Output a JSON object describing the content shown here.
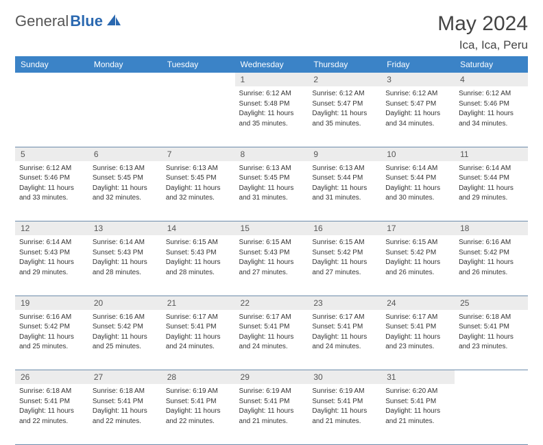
{
  "brand": {
    "part1": "General",
    "part2": "Blue"
  },
  "title": "May 2024",
  "location": "Ica, Ica, Peru",
  "colors": {
    "header_bg": "#3b83c7",
    "daynum_bg": "#ececec",
    "row_border": "#6a8aaa",
    "brand_blue": "#2a68b0"
  },
  "day_headers": [
    "Sunday",
    "Monday",
    "Tuesday",
    "Wednesday",
    "Thursday",
    "Friday",
    "Saturday"
  ],
  "weeks": [
    [
      null,
      null,
      null,
      {
        "d": "1",
        "sr": "6:12 AM",
        "ss": "5:48 PM",
        "dl1": "Daylight: 11 hours",
        "dl2": "and 35 minutes."
      },
      {
        "d": "2",
        "sr": "6:12 AM",
        "ss": "5:47 PM",
        "dl1": "Daylight: 11 hours",
        "dl2": "and 35 minutes."
      },
      {
        "d": "3",
        "sr": "6:12 AM",
        "ss": "5:47 PM",
        "dl1": "Daylight: 11 hours",
        "dl2": "and 34 minutes."
      },
      {
        "d": "4",
        "sr": "6:12 AM",
        "ss": "5:46 PM",
        "dl1": "Daylight: 11 hours",
        "dl2": "and 34 minutes."
      }
    ],
    [
      {
        "d": "5",
        "sr": "6:12 AM",
        "ss": "5:46 PM",
        "dl1": "Daylight: 11 hours",
        "dl2": "and 33 minutes."
      },
      {
        "d": "6",
        "sr": "6:13 AM",
        "ss": "5:45 PM",
        "dl1": "Daylight: 11 hours",
        "dl2": "and 32 minutes."
      },
      {
        "d": "7",
        "sr": "6:13 AM",
        "ss": "5:45 PM",
        "dl1": "Daylight: 11 hours",
        "dl2": "and 32 minutes."
      },
      {
        "d": "8",
        "sr": "6:13 AM",
        "ss": "5:45 PM",
        "dl1": "Daylight: 11 hours",
        "dl2": "and 31 minutes."
      },
      {
        "d": "9",
        "sr": "6:13 AM",
        "ss": "5:44 PM",
        "dl1": "Daylight: 11 hours",
        "dl2": "and 31 minutes."
      },
      {
        "d": "10",
        "sr": "6:14 AM",
        "ss": "5:44 PM",
        "dl1": "Daylight: 11 hours",
        "dl2": "and 30 minutes."
      },
      {
        "d": "11",
        "sr": "6:14 AM",
        "ss": "5:44 PM",
        "dl1": "Daylight: 11 hours",
        "dl2": "and 29 minutes."
      }
    ],
    [
      {
        "d": "12",
        "sr": "6:14 AM",
        "ss": "5:43 PM",
        "dl1": "Daylight: 11 hours",
        "dl2": "and 29 minutes."
      },
      {
        "d": "13",
        "sr": "6:14 AM",
        "ss": "5:43 PM",
        "dl1": "Daylight: 11 hours",
        "dl2": "and 28 minutes."
      },
      {
        "d": "14",
        "sr": "6:15 AM",
        "ss": "5:43 PM",
        "dl1": "Daylight: 11 hours",
        "dl2": "and 28 minutes."
      },
      {
        "d": "15",
        "sr": "6:15 AM",
        "ss": "5:43 PM",
        "dl1": "Daylight: 11 hours",
        "dl2": "and 27 minutes."
      },
      {
        "d": "16",
        "sr": "6:15 AM",
        "ss": "5:42 PM",
        "dl1": "Daylight: 11 hours",
        "dl2": "and 27 minutes."
      },
      {
        "d": "17",
        "sr": "6:15 AM",
        "ss": "5:42 PM",
        "dl1": "Daylight: 11 hours",
        "dl2": "and 26 minutes."
      },
      {
        "d": "18",
        "sr": "6:16 AM",
        "ss": "5:42 PM",
        "dl1": "Daylight: 11 hours",
        "dl2": "and 26 minutes."
      }
    ],
    [
      {
        "d": "19",
        "sr": "6:16 AM",
        "ss": "5:42 PM",
        "dl1": "Daylight: 11 hours",
        "dl2": "and 25 minutes."
      },
      {
        "d": "20",
        "sr": "6:16 AM",
        "ss": "5:42 PM",
        "dl1": "Daylight: 11 hours",
        "dl2": "and 25 minutes."
      },
      {
        "d": "21",
        "sr": "6:17 AM",
        "ss": "5:41 PM",
        "dl1": "Daylight: 11 hours",
        "dl2": "and 24 minutes."
      },
      {
        "d": "22",
        "sr": "6:17 AM",
        "ss": "5:41 PM",
        "dl1": "Daylight: 11 hours",
        "dl2": "and 24 minutes."
      },
      {
        "d": "23",
        "sr": "6:17 AM",
        "ss": "5:41 PM",
        "dl1": "Daylight: 11 hours",
        "dl2": "and 24 minutes."
      },
      {
        "d": "24",
        "sr": "6:17 AM",
        "ss": "5:41 PM",
        "dl1": "Daylight: 11 hours",
        "dl2": "and 23 minutes."
      },
      {
        "d": "25",
        "sr": "6:18 AM",
        "ss": "5:41 PM",
        "dl1": "Daylight: 11 hours",
        "dl2": "and 23 minutes."
      }
    ],
    [
      {
        "d": "26",
        "sr": "6:18 AM",
        "ss": "5:41 PM",
        "dl1": "Daylight: 11 hours",
        "dl2": "and 22 minutes."
      },
      {
        "d": "27",
        "sr": "6:18 AM",
        "ss": "5:41 PM",
        "dl1": "Daylight: 11 hours",
        "dl2": "and 22 minutes."
      },
      {
        "d": "28",
        "sr": "6:19 AM",
        "ss": "5:41 PM",
        "dl1": "Daylight: 11 hours",
        "dl2": "and 22 minutes."
      },
      {
        "d": "29",
        "sr": "6:19 AM",
        "ss": "5:41 PM",
        "dl1": "Daylight: 11 hours",
        "dl2": "and 21 minutes."
      },
      {
        "d": "30",
        "sr": "6:19 AM",
        "ss": "5:41 PM",
        "dl1": "Daylight: 11 hours",
        "dl2": "and 21 minutes."
      },
      {
        "d": "31",
        "sr": "6:20 AM",
        "ss": "5:41 PM",
        "dl1": "Daylight: 11 hours",
        "dl2": "and 21 minutes."
      },
      null
    ]
  ],
  "labels": {
    "sunrise": "Sunrise: ",
    "sunset": "Sunset: "
  }
}
